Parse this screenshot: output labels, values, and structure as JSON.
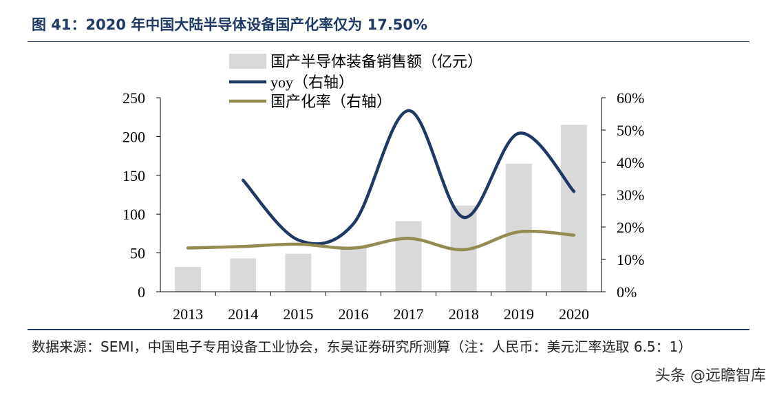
{
  "header": {
    "title": "图 41：2020 年中国大陆半导体设备国产化率仅为 17.50%"
  },
  "footer": {
    "source": "数据来源：SEMI，中国电子专用设备工业协会，东吴证券研究所测算（注：人民币：美元汇率选取 6.5：1）",
    "watermark": "头条 @远瞻智库"
  },
  "colors": {
    "bars": "#d9d9d9",
    "yoy": "#1f3864",
    "rate": "#948a54",
    "title": "#1f3864"
  },
  "chart_data": {
    "type": "bar+line",
    "categories": [
      "2013",
      "2014",
      "2015",
      "2016",
      "2017",
      "2018",
      "2019",
      "2020"
    ],
    "series": [
      {
        "name": "国产半导体装备销售额（亿元）",
        "type": "bar",
        "axis": "left",
        "values": [
          32,
          43,
          49,
          57,
          91,
          111,
          165,
          215
        ]
      },
      {
        "name": "yoy（右轴）",
        "type": "line",
        "axis": "right",
        "values": [
          null,
          34.5,
          16,
          21,
          56,
          23,
          49,
          31
        ]
      },
      {
        "name": "国产化率（右轴）",
        "type": "line",
        "axis": "right",
        "values": [
          13.5,
          14,
          14.7,
          13.5,
          16.5,
          13,
          18.5,
          17.5
        ]
      }
    ],
    "left_axis": {
      "ylim": [
        0,
        250
      ],
      "ticks": [
        "0",
        "50",
        "100",
        "150",
        "200",
        "250"
      ]
    },
    "right_axis": {
      "ylim": [
        0,
        60
      ],
      "ticks": [
        "0%",
        "10%",
        "20%",
        "30%",
        "40%",
        "50%",
        "60%"
      ]
    },
    "legend_placement": "top-center",
    "grid": false
  }
}
